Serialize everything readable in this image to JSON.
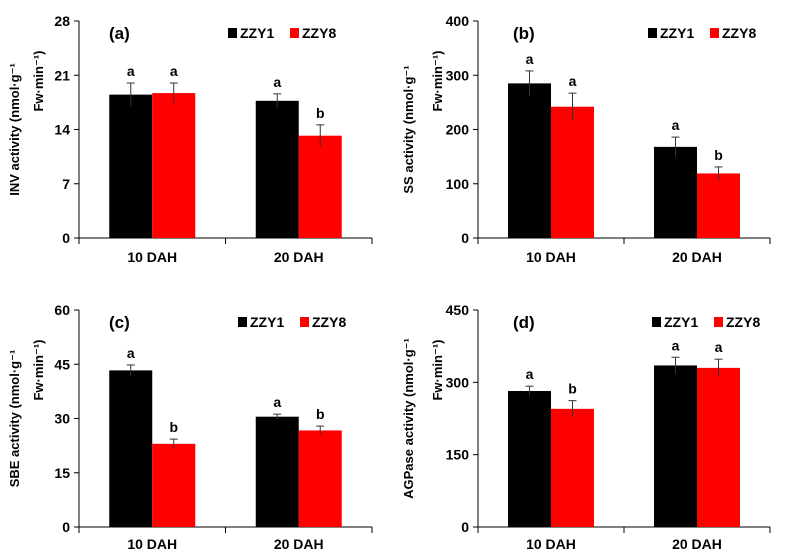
{
  "chart_data": [
    {
      "type": "bar",
      "panel_label": "(a)",
      "ylabel_line1": "INV activity  (nmol·g⁻¹",
      "ylabel_line2": "Fw·min⁻¹)",
      "categories": [
        "10 DAH",
        "20 DAH"
      ],
      "ylim": [
        0,
        28
      ],
      "yticks": [
        0,
        7,
        14,
        21,
        28
      ],
      "legend": [
        "ZZY1",
        "ZZY8"
      ],
      "colors": [
        "#000000",
        "#ff0000"
      ],
      "series": [
        {
          "name": "ZZY1",
          "values": [
            18.5,
            17.7
          ],
          "errors": [
            1.5,
            0.9
          ],
          "letters": [
            "a",
            "a"
          ]
        },
        {
          "name": "ZZY8",
          "values": [
            18.7,
            13.2
          ],
          "errors": [
            1.3,
            1.4
          ],
          "letters": [
            "a",
            "b"
          ]
        }
      ]
    },
    {
      "type": "bar",
      "panel_label": "(b)",
      "ylabel_line1": "SS activity  (nmol·g⁻¹",
      "ylabel_line2": "Fw·min⁻¹)",
      "categories": [
        "10 DAH",
        "20 DAH"
      ],
      "ylim": [
        0,
        400
      ],
      "yticks": [
        0,
        100,
        200,
        300,
        400
      ],
      "legend": [
        "ZZY1",
        "ZZY8"
      ],
      "colors": [
        "#000000",
        "#ff0000"
      ],
      "series": [
        {
          "name": "ZZY1",
          "values": [
            285,
            168
          ],
          "errors": [
            23,
            18
          ],
          "letters": [
            "a",
            "a"
          ]
        },
        {
          "name": "ZZY8",
          "values": [
            242,
            119
          ],
          "errors": [
            25,
            12
          ],
          "letters": [
            "a",
            "b"
          ]
        }
      ]
    },
    {
      "type": "bar",
      "panel_label": "(c)",
      "ylabel_line1": "SBE activity  (nmol·g⁻¹",
      "ylabel_line2": "Fw·min⁻¹)",
      "categories": [
        "10 DAH",
        "20 DAH"
      ],
      "ylim": [
        0,
        60
      ],
      "yticks": [
        0,
        15,
        30,
        45,
        60
      ],
      "legend": [
        "ZZY1",
        "ZZY8"
      ],
      "colors": [
        "#000000",
        "#ff0000"
      ],
      "series": [
        {
          "name": "ZZY1",
          "values": [
            43.3,
            30.5
          ],
          "errors": [
            1.5,
            0.7
          ],
          "letters": [
            "a",
            "a"
          ]
        },
        {
          "name": "ZZY8",
          "values": [
            23.0,
            26.7
          ],
          "errors": [
            1.3,
            1.2
          ],
          "letters": [
            "b",
            "b"
          ]
        }
      ]
    },
    {
      "type": "bar",
      "panel_label": "(d)",
      "ylabel_line1": "AGPase activity  (nmol·g⁻¹",
      "ylabel_line2": "Fw·min⁻¹)",
      "categories": [
        "10 DAH",
        "20 DAH"
      ],
      "ylim": [
        0,
        450
      ],
      "yticks": [
        0,
        150,
        300,
        450
      ],
      "legend": [
        "ZZY1",
        "ZZY8"
      ],
      "colors": [
        "#000000",
        "#ff0000"
      ],
      "series": [
        {
          "name": "ZZY1",
          "values": [
            282,
            335
          ],
          "errors": [
            10,
            17
          ],
          "letters": [
            "a",
            "a"
          ]
        },
        {
          "name": "ZZY8",
          "values": [
            245,
            330
          ],
          "errors": [
            17,
            18
          ],
          "letters": [
            "b",
            "a"
          ]
        }
      ]
    }
  ]
}
